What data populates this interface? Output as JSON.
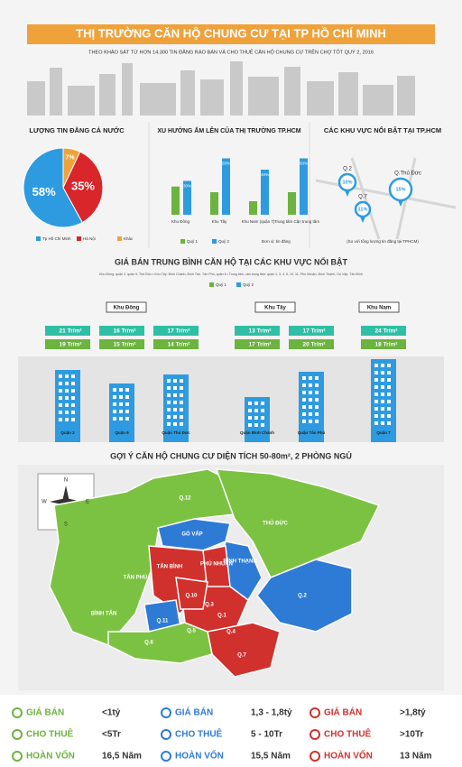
{
  "header": {
    "title": "THỊ TRƯỜNG CĂN HỘ CHUNG CƯ TẠI TP HỒ CHÍ MINH",
    "subtitle": "THEO KHẢO SÁT TỪ HƠN 14.300 TIN ĐĂNG RAO BÁN VÀ CHO THUÊ CĂN HỘ CHUNG CƯ TRÊN CHỢ TỐT QUÝ 2, 2016"
  },
  "chart_data": [
    {
      "type": "pie",
      "title": "LƯỢNG TIN ĐĂNG CẢ NƯỚC",
      "categories": [
        "Tp Hồ Chí Minh",
        "Hà Nội",
        "Khác"
      ],
      "values": [
        58,
        35,
        7
      ],
      "value_labels": [
        "58%",
        "35%",
        "7%"
      ],
      "colors": [
        "#2e9be0",
        "#d8262b",
        "#f0a23a"
      ]
    },
    {
      "type": "bar",
      "title": "XU HƯỚNG ẤM LÊN CỦA THỊ TRƯỜNG TP.HCM",
      "categories": [
        "Khu Đông",
        "Khu Tây",
        "Khu Nam (quận 7)",
        "Trung tâm Cận trung tâm"
      ],
      "series": [
        {
          "name": "Quý 1",
          "color": "#6cb33f",
          "values": [
            25,
            20,
            12,
            20
          ]
        },
        {
          "name": "Quý 2",
          "color": "#2e9be0",
          "values": [
            30,
            50,
            40,
            50
          ],
          "value_labels": [
            "30%",
            "50%",
            "40%",
            "50%"
          ]
        }
      ],
      "note": "Đơn vị: tin đăng"
    }
  ],
  "hotspots": {
    "title": "CÁC KHU VỰC NỔI BẬT TẠI TP.HCM",
    "pins": [
      {
        "name": "Q.2",
        "label": "10%"
      },
      {
        "name": "Q.Thủ Đức",
        "label": "15%"
      },
      {
        "name": "Q.7",
        "label": "11%"
      }
    ],
    "note": "(So với tổng lượng tin đăng tại TPHCM)"
  },
  "prices": {
    "title": "GIÁ BÁN TRUNG BÌNH CĂN HỘ TẠI CÁC KHU VỰC NỔI BẬT",
    "note": "Khu Đông: quận 2, quận 9, Thủ Đức • Khu Tây: Bình Chánh, Bình Tân, Tân Phú, quận 6 • Trung tâm, cận trung tâm: quận 1, 3, 4, 5, 10, 11, Phú Nhuận, Bình Thạnh, Gò Vấp, Tân Bình",
    "legend": [
      "Quý 1",
      "Quý 2"
    ],
    "groups": [
      {
        "name": "Khu Đông",
        "districts": [
          {
            "name": "Quận 2",
            "q1": "21 Tr/m²",
            "q2": "19 Tr/m²"
          },
          {
            "name": "Quận 9",
            "q1": "16 Tr/m²",
            "q2": "15 Tr/m²"
          },
          {
            "name": "Quận Thủ Đức",
            "q1": "17 Tr/m²",
            "q2": "14 Tr/m²"
          }
        ]
      },
      {
        "name": "Khu Tây",
        "districts": [
          {
            "name": "Quận Bình Chánh",
            "q1": "13 Tr/m²",
            "q2": "17 Tr/m²"
          },
          {
            "name": "Quận Tân Phú",
            "q1": "17 Tr/m²",
            "q2": "20 Tr/m²"
          }
        ]
      },
      {
        "name": "Khu Nam",
        "districts": [
          {
            "name": "Quận 7",
            "q1": "24 Tr/m²",
            "q2": "18 Tr/m²"
          }
        ]
      }
    ]
  },
  "map": {
    "title": "GỢI Ý CĂN HỘ CHUNG CƯ DIỆN TÍCH 50-80m², 2 PHÒNG NGỦ",
    "compass": {
      "n": "N",
      "s": "S",
      "e": "E",
      "w": "W"
    },
    "districts": [
      "Q.12",
      "GÒ VẤP",
      "THỦ ĐỨC",
      "TÂN BÌNH",
      "PHÚ NHUẬN",
      "BÌNH THẠNH",
      "TÂN PHÚ",
      "BÌNH TÂN",
      "Q.2",
      "Q.10",
      "Q.3",
      "Q.1",
      "Q.11",
      "Q.6",
      "Q.5",
      "Q.4",
      "Q.7"
    ]
  },
  "summary": [
    {
      "rows": [
        {
          "label": "GIÁ BÁN",
          "value": "<1tỷ"
        },
        {
          "label": "CHO THUÊ",
          "value": "<5Tr"
        },
        {
          "label": "HOÀN VỐN",
          "value": "16,5 Năm"
        }
      ]
    },
    {
      "rows": [
        {
          "label": "GIÁ BÁN",
          "value": "1,3 - 1,8tỷ"
        },
        {
          "label": "CHO THUÊ",
          "value": "5 - 10Tr"
        },
        {
          "label": "HOÀN VỐN",
          "value": "15,5 Năm"
        }
      ]
    },
    {
      "rows": [
        {
          "label": "GIÁ BÁN",
          "value": ">1,8tỷ"
        },
        {
          "label": "CHO THUÊ",
          "value": ">10Tr"
        },
        {
          "label": "HOÀN VỐN",
          "value": "13 Năm"
        }
      ]
    }
  ]
}
